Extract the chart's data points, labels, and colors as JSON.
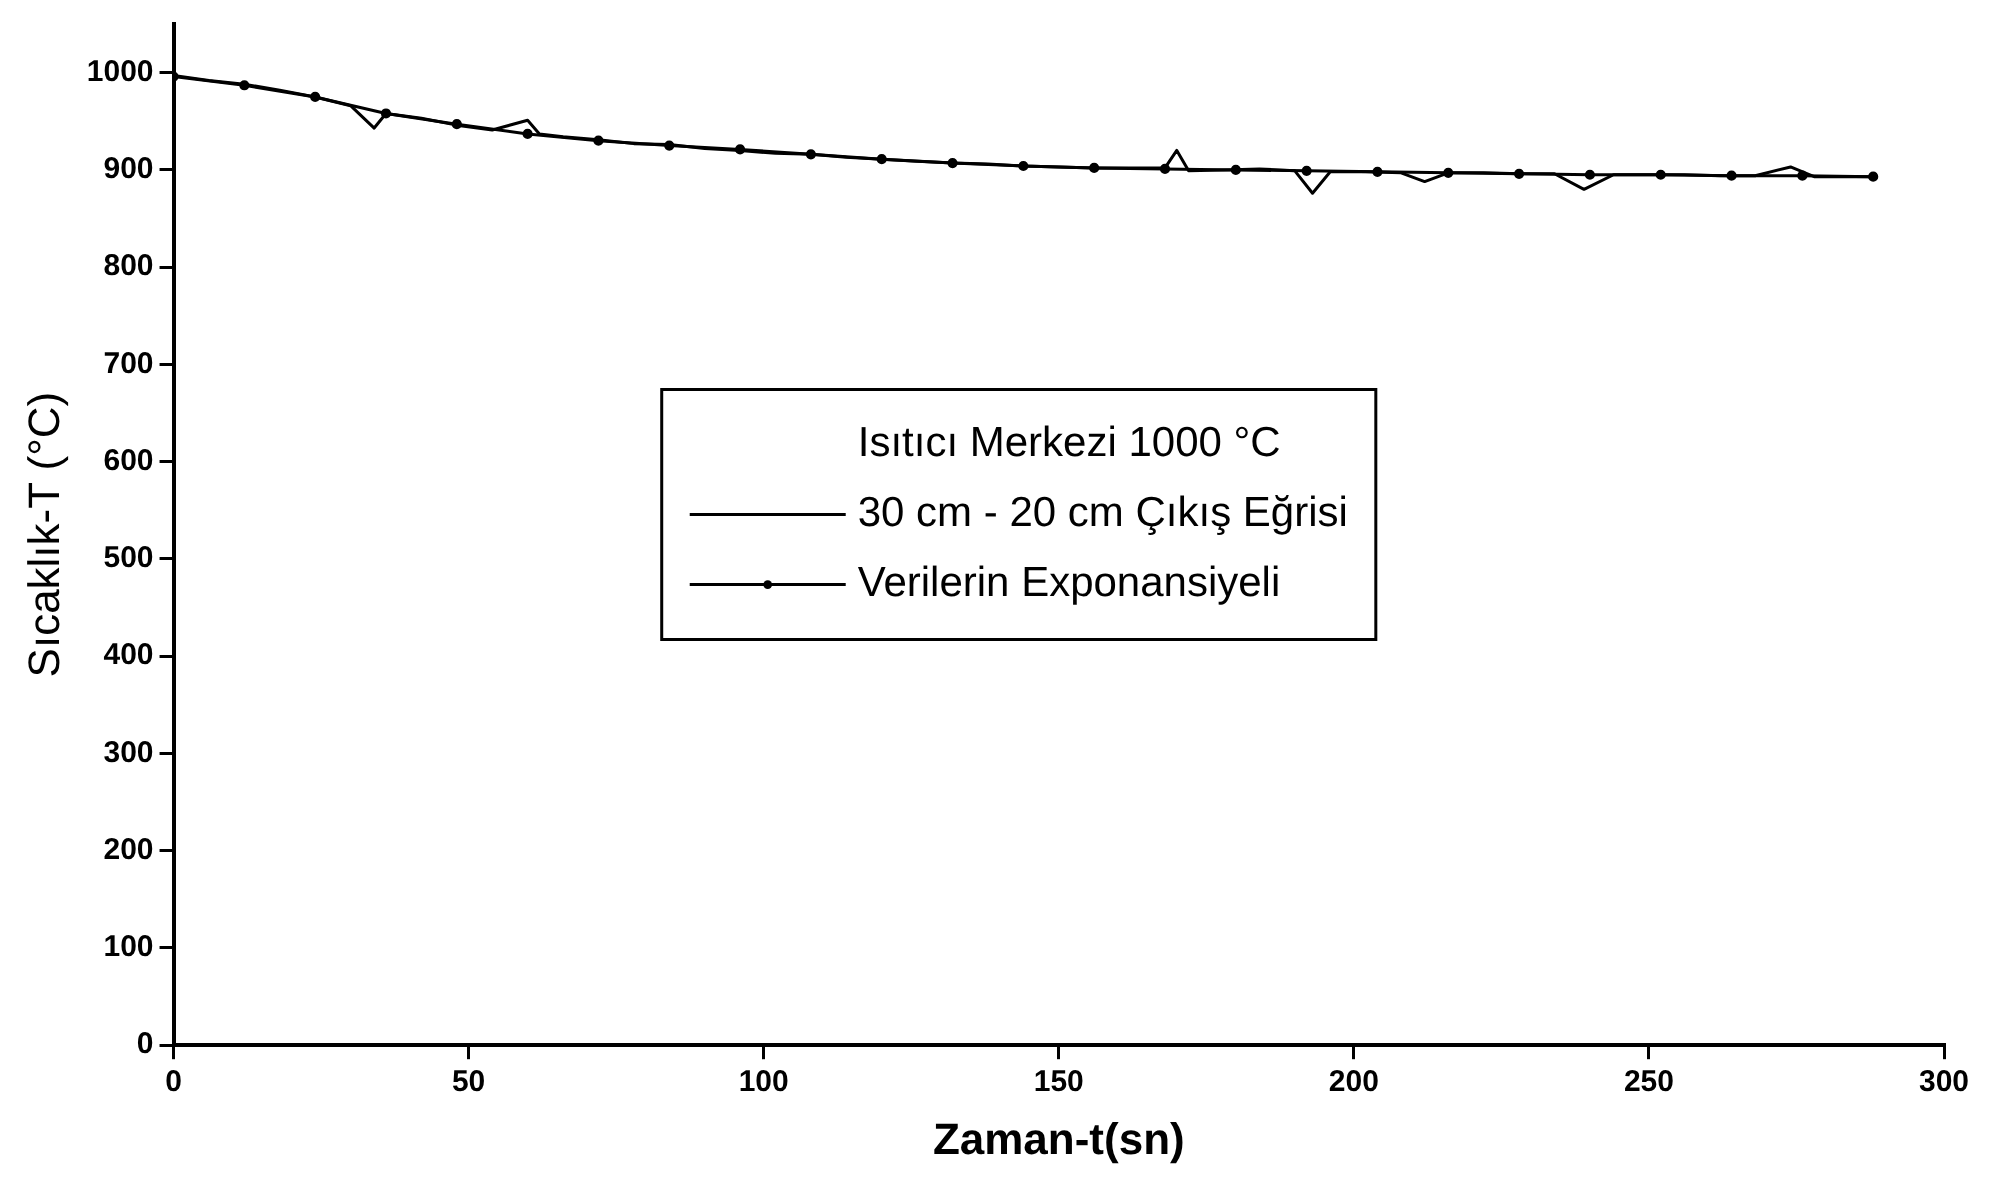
{
  "chart_data": {
    "type": "line",
    "xlabel": "Zaman-t(sn)",
    "ylabel": "Sıcaklık-T (°C)",
    "legend_title": "Isıtıcı Merkezi 1000 °C",
    "legend": "center",
    "grid": false,
    "line_style": "solid",
    "xlim": [
      0,
      300
    ],
    "xticks": [
      0,
      50,
      100,
      150,
      200,
      250,
      300
    ],
    "ylim": [
      0,
      1050
    ],
    "yticks": [
      0,
      100,
      200,
      300,
      400,
      500,
      600,
      700,
      800,
      900,
      1000
    ],
    "series": [
      {
        "name": "30 cm - 20 cm Çıkış Eğrisi",
        "color": "#000000",
        "marker": "none",
        "x": [
          0,
          6,
          12,
          18,
          24,
          30,
          34,
          36,
          42,
          48,
          54,
          60,
          62,
          66,
          72,
          78,
          84,
          90,
          96,
          102,
          108,
          114,
          120,
          126,
          132,
          138,
          144,
          150,
          156,
          162,
          168,
          170,
          172,
          178,
          184,
          190,
          193,
          196,
          202,
          208,
          212,
          216,
          222,
          228,
          234,
          239,
          244,
          250,
          256,
          262,
          268,
          274,
          278,
          284,
          288
        ],
        "values": [
          997,
          992,
          988,
          982,
          975,
          966,
          943,
          958,
          953,
          946,
          941,
          951,
          937,
          934,
          931,
          927,
          926,
          922,
          920,
          917,
          916,
          913,
          911,
          909,
          907,
          906,
          904,
          903,
          902,
          902,
          902,
          920,
          899,
          900,
          901,
          899,
          876,
          898,
          898,
          897,
          888,
          897,
          897,
          896,
          896,
          880,
          895,
          895,
          895,
          894,
          894,
          903,
          893,
          893,
          893
        ]
      },
      {
        "name": "Verilerin Exponansiyeli",
        "color": "#000000",
        "marker": "circle",
        "x": [
          0,
          12,
          24,
          36,
          48,
          60,
          72,
          84,
          96,
          108,
          120,
          132,
          144,
          156,
          168,
          180,
          192,
          204,
          216,
          228,
          240,
          252,
          264,
          276,
          288
        ],
        "values": [
          996,
          987,
          975,
          958,
          947,
          937,
          930,
          925,
          921,
          916,
          911,
          907,
          904,
          902,
          901,
          900,
          899,
          898,
          897,
          896,
          895,
          895,
          894,
          894,
          893
        ]
      }
    ]
  }
}
